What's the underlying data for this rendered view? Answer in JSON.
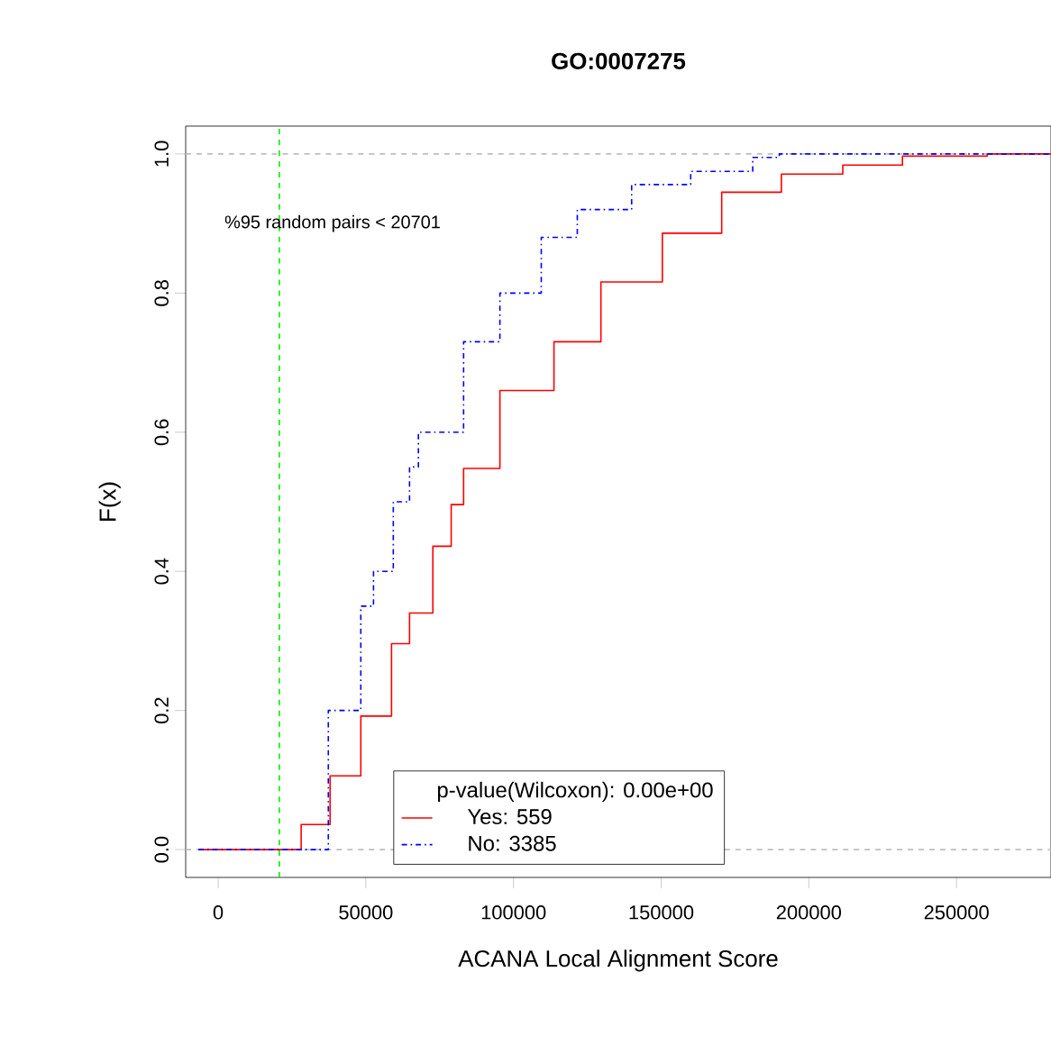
{
  "chart_data": {
    "type": "step",
    "title": "GO:0007275",
    "xlabel": "ACANA Local Alignment Score",
    "ylabel": "F(x)",
    "legend_title": "p-value(Wilcoxon): 0.00e+00",
    "legend": "bottom",
    "series": [
      {
        "name": "Yes: 559",
        "color": "#ff0000",
        "line_style": "solid",
        "x": [
          -6700,
          20800,
          28100,
          37900,
          48300,
          58700,
          64800,
          72700,
          78900,
          83100,
          95400,
          113700,
          129600,
          150400,
          170500,
          190700,
          211500,
          231700,
          260400,
          282000
        ],
        "values": [
          0,
          0,
          0.036,
          0.106,
          0.192,
          0.296,
          0.34,
          0.436,
          0.496,
          0.548,
          0.66,
          0.73,
          0.816,
          0.886,
          0.945,
          0.971,
          0.984,
          0.997,
          1.0,
          1.0
        ]
      },
      {
        "name": "No: 3385",
        "color": "#0000ff",
        "line_style": "dashdot",
        "x": [
          -6700,
          20800,
          37300,
          48300,
          52600,
          59300,
          64800,
          67800,
          83100,
          95400,
          109400,
          121600,
          140000,
          160000,
          181000,
          190000,
          282000
        ],
        "values": [
          0,
          0,
          0.2,
          0.35,
          0.4,
          0.5,
          0.55,
          0.6,
          0.73,
          0.8,
          0.88,
          0.92,
          0.956,
          0.975,
          0.995,
          1.0,
          1.0
        ]
      }
    ],
    "xlim": [
      -11000,
      282000
    ],
    "ylim": [
      -0.04,
      1.04
    ],
    "xticks": [
      0,
      50000,
      100000,
      150000,
      200000,
      250000
    ],
    "yticks": [
      {
        "value": 0,
        "label": "0.0"
      },
      {
        "value": 0.2,
        "label": "0.2"
      },
      {
        "value": 0.4,
        "label": "0.4"
      },
      {
        "value": 0.6,
        "label": "0.6"
      },
      {
        "value": 0.8,
        "label": "0.8"
      },
      {
        "value": 1,
        "label": "1.0"
      }
    ],
    "ref_lines": [
      {
        "axis": "y",
        "value": 0,
        "color": "#bebebe",
        "line_style": "dashed"
      },
      {
        "axis": "y",
        "value": 1,
        "color": "#bebebe",
        "line_style": "dashed"
      },
      {
        "axis": "x",
        "value": 20701,
        "color": "#00ee00",
        "line_style": "dashed",
        "label": "%95 random pairs < 20701"
      }
    ]
  }
}
